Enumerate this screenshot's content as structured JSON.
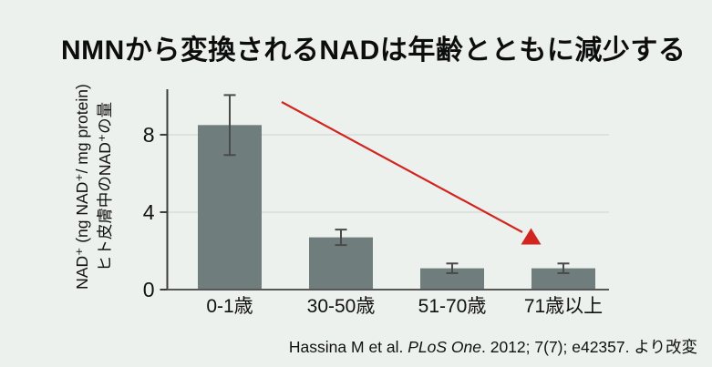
{
  "title": "NMNから変換されるNADは年齢とともに減少する",
  "chart_data": {
    "type": "bar",
    "title": "NMNから変換されるNADは年齢とともに減少する",
    "categories": [
      "0-1歳",
      "30-50歳",
      "51-70歳",
      "71歳以上"
    ],
    "values": [
      8.5,
      2.7,
      1.1,
      1.1
    ],
    "errors": [
      1.55,
      0.4,
      0.25,
      0.25
    ],
    "xlabel": "",
    "ylabel_lines": [
      "NAD⁺ (ng NAD⁺/ mg protein)",
      "ヒト皮膚中のNAD⁺の量"
    ],
    "yticks": [
      0,
      4,
      8
    ],
    "ylim": [
      0,
      10.35
    ],
    "grid": "horizontal gridlines at 4 and 8",
    "legend": false,
    "bar_color": "#6f7d7c",
    "error_bar_color": "#4a4a4a",
    "gridline_color": "#d9ddd9",
    "axis_color": "#3c3c3c",
    "annotation_arrow": {
      "meaning": "downward trend with age",
      "color": "#d2251f"
    }
  },
  "citation": {
    "authors": "Hassina M et al. ",
    "journal": "PLoS One",
    "details": ". 2012; 7(7); e42357. より改変"
  }
}
